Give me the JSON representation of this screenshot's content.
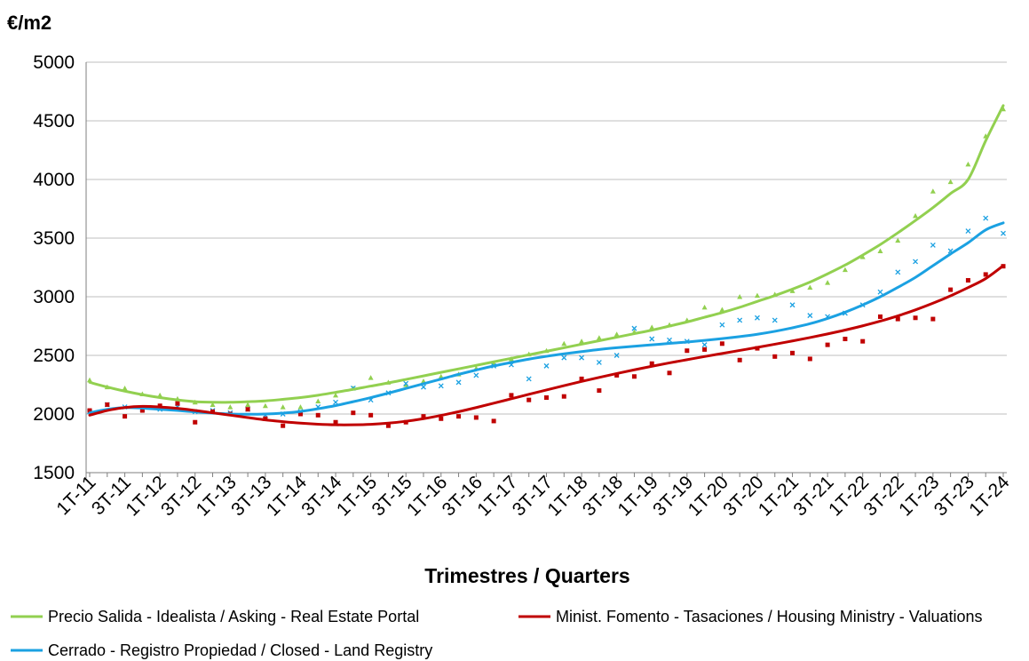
{
  "chart_data": {
    "type": "scatter",
    "ylabel": "€/m2",
    "xlabel": "Trimestres / Quarters",
    "ylim": [
      1500,
      5000
    ],
    "yticks": [
      1500,
      2000,
      2500,
      3000,
      3500,
      4000,
      4500,
      5000
    ],
    "grid": "horizontal",
    "legend_position": "bottom",
    "categories": [
      "1T-11",
      "2T-11",
      "3T-11",
      "4T-11",
      "1T-12",
      "2T-12",
      "3T-12",
      "4T-12",
      "1T-13",
      "2T-13",
      "3T-13",
      "4T-13",
      "1T-14",
      "2T-14",
      "3T-14",
      "4T-14",
      "1T-15",
      "2T-15",
      "3T-15",
      "4T-15",
      "1T-16",
      "2T-16",
      "3T-16",
      "4T-16",
      "1T-17",
      "2T-17",
      "3T-17",
      "4T-17",
      "1T-18",
      "2T-18",
      "3T-18",
      "4T-18",
      "1T-19",
      "2T-19",
      "3T-19",
      "4T-19",
      "1T-20",
      "2T-20",
      "3T-20",
      "4T-20",
      "1T-21",
      "2T-21",
      "3T-21",
      "4T-21",
      "1T-22",
      "2T-22",
      "3T-22",
      "4T-22",
      "1T-23",
      "2T-23",
      "3T-23",
      "4T-23",
      "1T-24"
    ],
    "tick_labels": [
      "1T-11",
      "3T-11",
      "1T-12",
      "3T-12",
      "1T-13",
      "3T-13",
      "1T-14",
      "3T-14",
      "1T-15",
      "3T-15",
      "1T-16",
      "3T-16",
      "1T-17",
      "3T-17",
      "1T-18",
      "3T-18",
      "1T-19",
      "3T-19",
      "1T-20",
      "3T-20",
      "1T-21",
      "3T-21",
      "1T-22",
      "3T-22",
      "1T-23",
      "3T-23",
      "1T-24"
    ],
    "series": [
      {
        "name": "Precio Salida - Idealista / Asking - Real Estate Portal",
        "color": "#92d050",
        "marker": "triangle",
        "values": [
          2290,
          2230,
          2220,
          2170,
          2160,
          2130,
          2100,
          2080,
          2060,
          2080,
          2070,
          2060,
          2060,
          2110,
          2160,
          2220,
          2310,
          2270,
          2250,
          2280,
          2320,
          2340,
          2390,
          2430,
          2470,
          2510,
          2540,
          2600,
          2620,
          2650,
          2680,
          2700,
          2740,
          2760,
          2800,
          2910,
          2890,
          3000,
          3010,
          3020,
          3050,
          3080,
          3120,
          3230,
          3340,
          3390,
          3480,
          3690,
          3900,
          3980,
          4130,
          4370,
          4600
        ],
        "trend": [
          2270,
          2230,
          2195,
          2165,
          2140,
          2120,
          2105,
          2100,
          2100,
          2105,
          2112,
          2125,
          2140,
          2160,
          2185,
          2210,
          2238,
          2265,
          2295,
          2325,
          2355,
          2385,
          2415,
          2445,
          2475,
          2505,
          2535,
          2565,
          2595,
          2625,
          2655,
          2685,
          2715,
          2750,
          2785,
          2825,
          2865,
          2910,
          2960,
          3010,
          3065,
          3125,
          3195,
          3270,
          3355,
          3445,
          3545,
          3650,
          3760,
          3880,
          4000,
          4330,
          4630
        ]
      },
      {
        "name": "Cerrado - Registro Propiedad / Closed - Land Registry",
        "color": "#1ba1e2",
        "marker": "x",
        "values": [
          2020,
          2080,
          2060,
          2040,
          2040,
          2060,
          2020,
          2030,
          2010,
          2040,
          1990,
          2000,
          2020,
          2060,
          2100,
          2220,
          2120,
          2180,
          2260,
          2230,
          2240,
          2270,
          2330,
          2410,
          2420,
          2300,
          2410,
          2480,
          2480,
          2440,
          2500,
          2730,
          2640,
          2630,
          2620,
          2590,
          2760,
          2800,
          2820,
          2800,
          2930,
          2840,
          2830,
          2860,
          2930,
          3040,
          3210,
          3300,
          3440,
          3390,
          3560,
          3670,
          3540
        ],
        "trend": [
          2010,
          2040,
          2055,
          2050,
          2040,
          2030,
          2018,
          2008,
          2000,
          1998,
          2000,
          2008,
          2022,
          2045,
          2072,
          2105,
          2140,
          2178,
          2218,
          2258,
          2298,
          2338,
          2375,
          2410,
          2440,
          2468,
          2492,
          2513,
          2532,
          2550,
          2565,
          2578,
          2590,
          2602,
          2614,
          2628,
          2643,
          2660,
          2680,
          2705,
          2735,
          2770,
          2815,
          2868,
          2930,
          3000,
          3080,
          3165,
          3265,
          3365,
          3460,
          3570,
          3630
        ]
      },
      {
        "name": "Minist. Fomento - Tasaciones / Housing Ministry - Valuations",
        "color": "#c00000",
        "marker": "square",
        "values": [
          2030,
          2080,
          1980,
          2030,
          2070,
          2090,
          1930,
          2020,
          2000,
          2040,
          1960,
          1900,
          2000,
          1990,
          1930,
          2010,
          1990,
          1900,
          1930,
          1980,
          1960,
          1980,
          1970,
          1940,
          2160,
          2120,
          2140,
          2150,
          2300,
          2200,
          2330,
          2320,
          2430,
          2350,
          2540,
          2550,
          2600,
          2460,
          2560,
          2490,
          2520,
          2470,
          2590,
          2640,
          2620,
          2830,
          2810,
          2820,
          2810,
          3060,
          3140,
          3190,
          3260
        ],
        "trend": [
          1990,
          2030,
          2055,
          2065,
          2060,
          2048,
          2030,
          2010,
          1990,
          1970,
          1950,
          1935,
          1922,
          1913,
          1908,
          1908,
          1912,
          1922,
          1938,
          1960,
          1988,
          2020,
          2055,
          2092,
          2130,
          2168,
          2205,
          2242,
          2278,
          2312,
          2345,
          2377,
          2407,
          2436,
          2463,
          2490,
          2516,
          2542,
          2568,
          2595,
          2623,
          2652,
          2683,
          2716,
          2752,
          2792,
          2837,
          2888,
          2945,
          3008,
          3078,
          3155,
          3265
        ]
      }
    ]
  }
}
